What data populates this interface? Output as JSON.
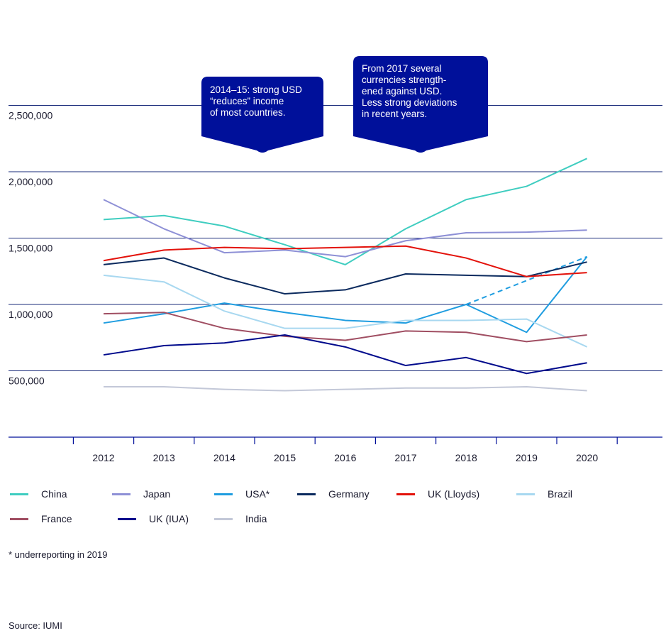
{
  "chart_data": {
    "type": "line",
    "x": [
      "2012",
      "2013",
      "2014",
      "2015",
      "2016",
      "2017",
      "2018",
      "2019",
      "2020"
    ],
    "y_ticks": [
      "500,000",
      "1,000,000",
      "1,500,000",
      "2,000,000",
      "2,500,000"
    ],
    "y_tick_values": [
      500000,
      1000000,
      1500000,
      2000000,
      2500000
    ],
    "ylim": [
      0,
      2500000
    ],
    "grid": "horizontal",
    "legend_position": "bottom",
    "series": [
      {
        "name": "China",
        "color": "#3fcdc0",
        "values": [
          1640000,
          1670000,
          1590000,
          1450000,
          1300000,
          1570000,
          1790000,
          1890000,
          2100000
        ]
      },
      {
        "name": "Japan",
        "color": "#8e90d6",
        "values": [
          1790000,
          1570000,
          1390000,
          1410000,
          1360000,
          1480000,
          1540000,
          1545000,
          1560000
        ]
      },
      {
        "name": "USA*",
        "color": "#1f9de0",
        "values": [
          860000,
          930000,
          1010000,
          940000,
          880000,
          860000,
          1000000,
          790000,
          1360000
        ],
        "dashed_segment": {
          "from": "2018",
          "to": "2020",
          "values": [
            1000000,
            1360000
          ]
        }
      },
      {
        "name": "Germany",
        "color": "#0b2a5e",
        "values": [
          1300000,
          1350000,
          1200000,
          1080000,
          1110000,
          1230000,
          1220000,
          1210000,
          1320000
        ]
      },
      {
        "name": "UK (Lloyds)",
        "color": "#e3120b",
        "values": [
          1330000,
          1410000,
          1430000,
          1420000,
          1430000,
          1440000,
          1350000,
          1210000,
          1240000
        ]
      },
      {
        "name": "Brazil",
        "color": "#a8d8f0",
        "values": [
          1220000,
          1170000,
          950000,
          820000,
          820000,
          880000,
          880000,
          890000,
          680000
        ]
      },
      {
        "name": "France",
        "color": "#a04e62",
        "values": [
          930000,
          940000,
          820000,
          760000,
          730000,
          800000,
          790000,
          720000,
          770000
        ]
      },
      {
        "name": "UK (IUA)",
        "color": "#000a8c",
        "values": [
          620000,
          690000,
          710000,
          770000,
          680000,
          540000,
          600000,
          480000,
          560000
        ]
      },
      {
        "name": "India",
        "color": "#c3c8d8",
        "values": [
          380000,
          380000,
          360000,
          350000,
          360000,
          370000,
          370000,
          380000,
          350000
        ]
      }
    ]
  },
  "callouts": [
    {
      "text": [
        "2014–15: strong USD",
        "“reduces” income",
        "of most countries."
      ]
    },
    {
      "text": [
        "From 2017 several",
        "currencies strength-",
        "ened against USD.",
        "Less strong deviations",
        "in recent years."
      ]
    }
  ],
  "colors": {
    "callout_bg": "#00109a",
    "gridline": "#1a2b7a",
    "axis": "#00109a"
  },
  "footnote": "*  underreporting in 2019",
  "source": "Source: IUMI"
}
